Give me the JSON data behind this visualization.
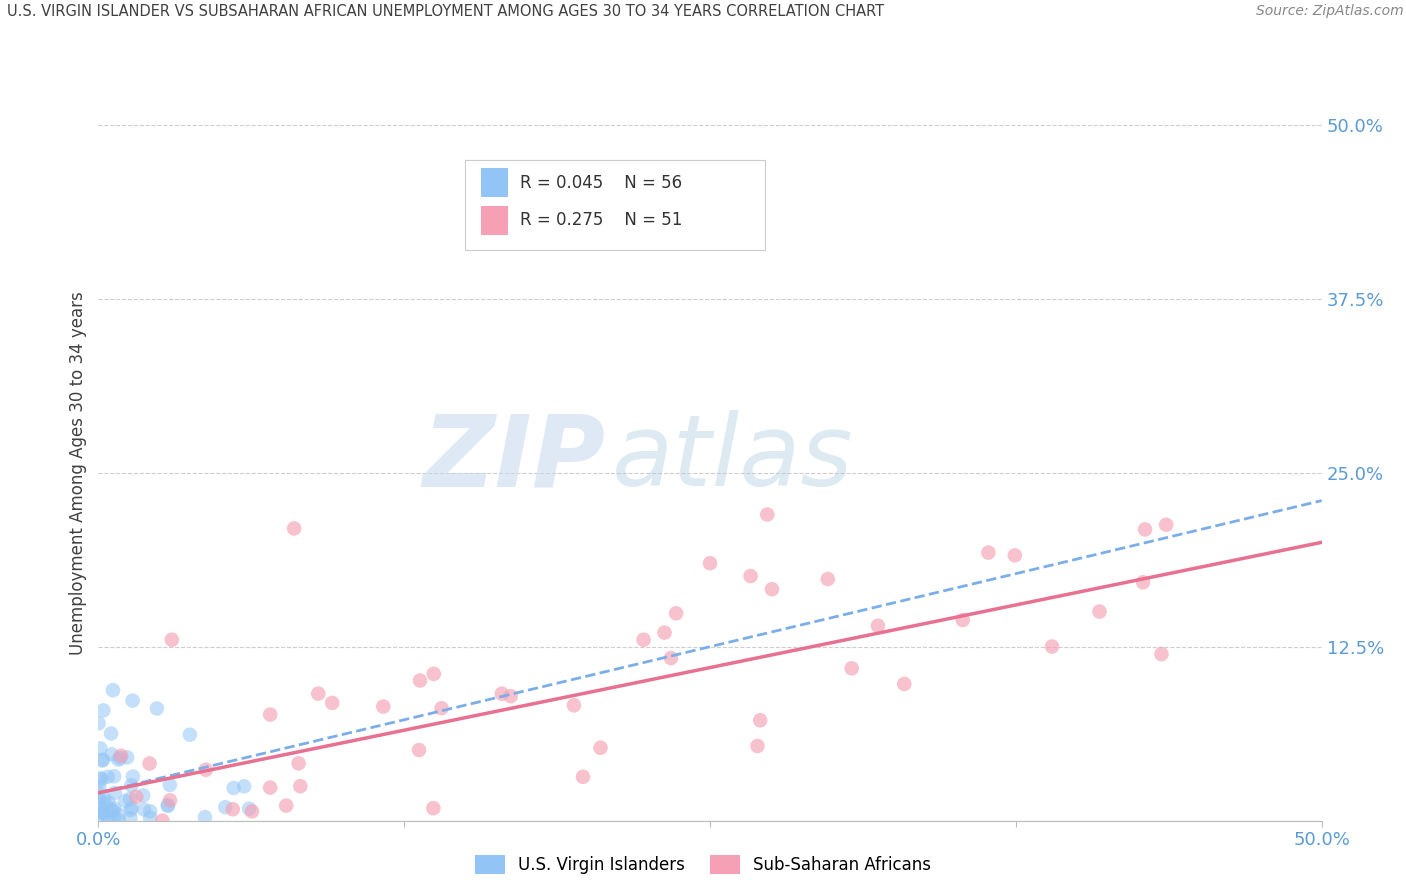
{
  "title": "U.S. VIRGIN ISLANDER VS SUBSAHARAN AFRICAN UNEMPLOYMENT AMONG AGES 30 TO 34 YEARS CORRELATION CHART",
  "source": "Source: ZipAtlas.com",
  "ylabel": "Unemployment Among Ages 30 to 34 years",
  "xlim": [
    0.0,
    0.5
  ],
  "ylim": [
    0.0,
    0.5
  ],
  "yticks": [
    0.0,
    0.125,
    0.25,
    0.375,
    0.5
  ],
  "xticks": [
    0.0,
    0.125,
    0.25,
    0.375,
    0.5
  ],
  "yticklabels_right": [
    "",
    "12.5%",
    "25.0%",
    "37.5%",
    "50.0%"
  ],
  "xticklabels": [
    "0.0%",
    "",
    "",
    "",
    "50.0%"
  ],
  "watermark_zip": "ZIP",
  "watermark_atlas": "atlas",
  "legend_labels": [
    "U.S. Virgin Islanders",
    "Sub-Saharan Africans"
  ],
  "R_blue": 0.045,
  "N_blue": 56,
  "R_pink": 0.275,
  "N_pink": 51,
  "blue_color": "#92C5F5",
  "pink_color": "#F5A0B5",
  "blue_line_color": "#7BAEE8",
  "pink_line_color": "#E87090",
  "background_color": "#ffffff",
  "grid_color": "#c8c8c8",
  "title_color": "#404040",
  "ytick_color": "#5B9BD5",
  "xtick_color": "#5B9BD5",
  "blue_trend_start_y": 0.02,
  "blue_trend_end_y": 0.23,
  "pink_trend_start_y": 0.02,
  "pink_trend_end_y": 0.2
}
